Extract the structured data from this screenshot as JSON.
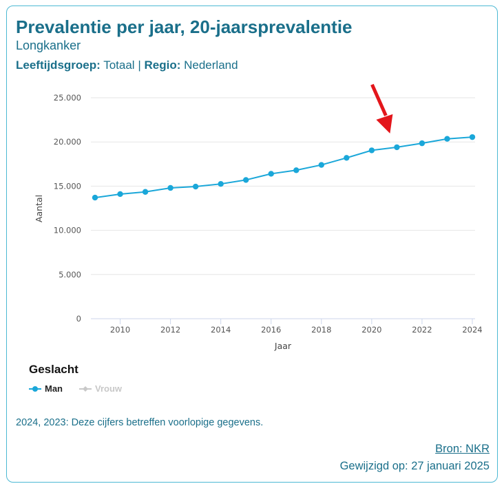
{
  "header": {
    "title": "Prevalentie per jaar, 20-jaarsprevalentie",
    "subtitle": "Longkanker",
    "filter_age_label": "Leeftijdsgroep:",
    "filter_age_value": "Totaal",
    "filter_separator": "|",
    "filter_region_label": "Regio:",
    "filter_region_value": "Nederland"
  },
  "legend": {
    "title": "Geslacht",
    "items": [
      {
        "label": "Man",
        "active": true
      },
      {
        "label": "Vrouw",
        "active": false
      }
    ]
  },
  "note": "2024, 2023: Deze cijfers betreffen voorlopige gegevens.",
  "footer": {
    "source": "Bron: NKR",
    "modified": "Gewijzigd op: 27 januari 2025"
  },
  "colors": {
    "accent": "#1a6f8a",
    "series_man": "#1aa7d9",
    "series_vrouw": "#c8c8c8",
    "annotation_arrow": "#e3161b"
  },
  "chart_data": {
    "type": "line",
    "xlabel": "Jaar",
    "ylabel": "Aantal",
    "xlim": [
      2009,
      2024
    ],
    "ylim": [
      0,
      25000
    ],
    "x_ticks": [
      2010,
      2012,
      2014,
      2016,
      2018,
      2020,
      2022,
      2024
    ],
    "y_ticks": [
      0,
      5000,
      10000,
      15000,
      20000,
      25000
    ],
    "y_tick_labels": [
      "0",
      "5.000",
      "10.000",
      "15.000",
      "20.000",
      "25.000"
    ],
    "grid": true,
    "legend_position": "bottom-left",
    "x": [
      2009,
      2010,
      2011,
      2012,
      2013,
      2014,
      2015,
      2016,
      2017,
      2018,
      2019,
      2020,
      2021,
      2022,
      2023,
      2024
    ],
    "series": [
      {
        "name": "Man",
        "values": [
          13700,
          14100,
          14350,
          14800,
          14950,
          15250,
          15700,
          16400,
          16800,
          17400,
          18200,
          19050,
          19400,
          19850,
          20350,
          20550
        ]
      }
    ],
    "annotation": {
      "type": "arrow",
      "target_x": 2021
    }
  }
}
